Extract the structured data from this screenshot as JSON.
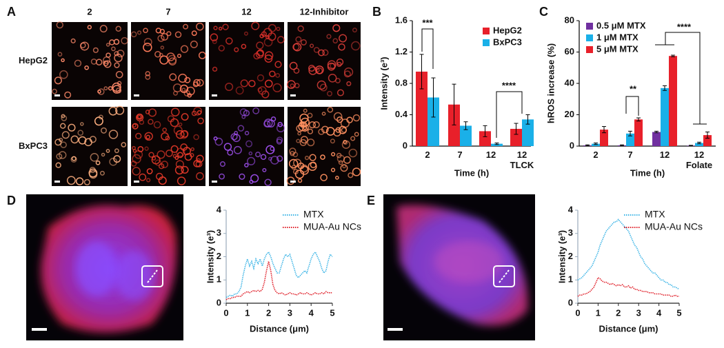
{
  "panel_labels": [
    "A",
    "B",
    "C",
    "D",
    "E"
  ],
  "figure_a": {
    "columns": [
      "2",
      "7",
      "12",
      "12-Inhibitor"
    ],
    "rows": [
      "HepG2",
      "BxPC3"
    ]
  },
  "chart_data": [
    {
      "type": "bar",
      "categories": [
        "2",
        "7",
        "12",
        "12\nTLCK"
      ],
      "xlabel": "Time (h)",
      "ylabel": "Intensity (e³)",
      "ylim": [
        0,
        1.6
      ],
      "yticks": [
        0,
        0.4,
        0.8,
        1.2,
        1.6
      ],
      "legend": "upper right",
      "series": [
        {
          "name": "HepG2",
          "color": "#e8202a",
          "values": [
            0.95,
            0.53,
            0.19,
            0.22
          ],
          "errors": [
            0.22,
            0.26,
            0.07,
            0.07
          ]
        },
        {
          "name": "BxPC3",
          "color": "#1ab0e8",
          "values": [
            0.62,
            0.26,
            0.03,
            0.34
          ],
          "errors": [
            0.25,
            0.05,
            0.01,
            0.06
          ]
        }
      ],
      "annotations": [
        "***",
        "****"
      ]
    },
    {
      "type": "bar",
      "categories": [
        "2",
        "7",
        "12",
        "12\nFolate"
      ],
      "xlabel": "Time (h)",
      "ylabel": "hROS increase (%)",
      "ylim": [
        0,
        80
      ],
      "yticks": [
        0,
        20,
        40,
        60,
        80
      ],
      "legend": "upper left",
      "series": [
        {
          "name": "0.5 μM MTX",
          "color": "#7030a0",
          "values": [
            0.5,
            0.5,
            9,
            0.3
          ],
          "errors": [
            0.3,
            0.3,
            0.5,
            0.2
          ]
        },
        {
          "name": "1 μM MTX",
          "color": "#1ab0e8",
          "values": [
            1.5,
            8,
            37,
            2
          ],
          "errors": [
            0.5,
            1.5,
            1.5,
            0.5
          ]
        },
        {
          "name": "5 μM MTX",
          "color": "#e8202a",
          "values": [
            10.5,
            17,
            57.5,
            7
          ],
          "errors": [
            2,
            1,
            0.5,
            2
          ]
        }
      ],
      "annotations": [
        "**",
        "****"
      ]
    },
    {
      "type": "line",
      "xlabel": "Distance (μm)",
      "ylabel": "Intensity (e³)",
      "xlim": [
        0,
        5
      ],
      "xticks": [
        0,
        1,
        2,
        3,
        4,
        5
      ],
      "ylim": [
        0,
        4
      ],
      "yticks": [
        0,
        1,
        2,
        3,
        4
      ],
      "legend": "upper right",
      "x": [
        0,
        0.1,
        0.2,
        0.3,
        0.4,
        0.5,
        0.6,
        0.7,
        0.8,
        0.9,
        1,
        1.1,
        1.2,
        1.3,
        1.4,
        1.5,
        1.6,
        1.7,
        1.8,
        1.9,
        2,
        2.1,
        2.2,
        2.3,
        2.4,
        2.5,
        2.6,
        2.7,
        2.8,
        2.9,
        3,
        3.1,
        3.2,
        3.3,
        3.4,
        3.5,
        3.6,
        3.7,
        3.8,
        3.9,
        4,
        4.1,
        4.2,
        4.3,
        4.4,
        4.5,
        4.6,
        4.7,
        4.8,
        4.9,
        5
      ],
      "series": [
        {
          "name": "MTX",
          "color": "#3bb4e6",
          "values": [
            0.25,
            0.3,
            0.35,
            0.3,
            0.4,
            0.4,
            0.5,
            0.7,
            1.2,
            1.6,
            1.9,
            1.6,
            1.8,
            1.5,
            1.9,
            1.7,
            1.9,
            1.6,
            1.9,
            2.1,
            2.2,
            2.0,
            1.7,
            1.5,
            1.3,
            1.3,
            1.6,
            1.9,
            2.1,
            2.0,
            2.1,
            1.8,
            1.5,
            1.2,
            1.1,
            1.2,
            1.3,
            1.4,
            1.3,
            1.6,
            1.9,
            2.1,
            2.2,
            2.0,
            1.8,
            1.5,
            1.3,
            1.4,
            1.8,
            2.1,
            2.0
          ]
        },
        {
          "name": "MUA-Au NCs",
          "color": "#e0202a",
          "values": [
            0.15,
            0.2,
            0.2,
            0.25,
            0.25,
            0.3,
            0.3,
            0.3,
            0.4,
            0.45,
            0.5,
            0.45,
            0.5,
            0.55,
            0.5,
            0.55,
            0.5,
            0.6,
            0.9,
            1.4,
            1.8,
            1.4,
            0.8,
            0.55,
            0.45,
            0.4,
            0.45,
            0.4,
            0.35,
            0.4,
            0.45,
            0.4,
            0.4,
            0.35,
            0.4,
            0.45,
            0.4,
            0.4,
            0.45,
            0.4,
            0.35,
            0.4,
            0.45,
            0.4,
            0.4,
            0.45,
            0.4,
            0.5,
            0.45,
            0.45,
            0.45
          ]
        }
      ]
    },
    {
      "type": "line",
      "xlabel": "Distance (μm)",
      "ylabel": "Intensity (e³)",
      "xlim": [
        0,
        5
      ],
      "xticks": [
        0,
        1,
        2,
        3,
        4,
        5
      ],
      "ylim": [
        0,
        4
      ],
      "yticks": [
        0,
        1,
        2,
        3,
        4
      ],
      "legend": "upper right",
      "x": [
        0,
        0.1,
        0.2,
        0.3,
        0.4,
        0.5,
        0.6,
        0.7,
        0.8,
        0.9,
        1,
        1.1,
        1.2,
        1.3,
        1.4,
        1.5,
        1.6,
        1.7,
        1.8,
        1.9,
        2,
        2.1,
        2.2,
        2.3,
        2.4,
        2.5,
        2.6,
        2.7,
        2.8,
        2.9,
        3,
        3.1,
        3.2,
        3.3,
        3.4,
        3.5,
        3.6,
        3.7,
        3.8,
        3.9,
        4,
        4.1,
        4.2,
        4.3,
        4.4,
        4.5,
        4.6,
        4.7,
        4.8,
        4.9,
        5
      ],
      "series": [
        {
          "name": "MTX",
          "color": "#3bb4e6",
          "values": [
            1.0,
            1.05,
            1.1,
            1.2,
            1.3,
            1.4,
            1.5,
            1.6,
            1.8,
            2.0,
            2.2,
            2.5,
            2.7,
            2.9,
            3.1,
            3.2,
            3.3,
            3.4,
            3.5,
            3.5,
            3.6,
            3.5,
            3.4,
            3.3,
            3.2,
            3.1,
            2.9,
            2.7,
            2.5,
            2.4,
            2.2,
            2.0,
            1.9,
            1.7,
            1.6,
            1.5,
            1.4,
            1.3,
            1.3,
            1.2,
            1.1,
            1.0,
            1.0,
            0.9,
            0.9,
            0.8,
            0.8,
            0.7,
            0.7,
            0.65,
            0.6
          ]
        },
        {
          "name": "MUA-Au NCs",
          "color": "#e0202a",
          "values": [
            0.3,
            0.35,
            0.35,
            0.4,
            0.4,
            0.45,
            0.5,
            0.6,
            0.7,
            0.9,
            1.1,
            1.05,
            0.95,
            0.9,
            0.9,
            0.85,
            0.8,
            0.85,
            0.8,
            0.75,
            0.8,
            0.75,
            0.8,
            0.7,
            0.7,
            0.75,
            0.65,
            0.7,
            0.6,
            0.6,
            0.55,
            0.55,
            0.5,
            0.5,
            0.5,
            0.45,
            0.45,
            0.45,
            0.4,
            0.4,
            0.4,
            0.4,
            0.35,
            0.35,
            0.35,
            0.35,
            0.3,
            0.3,
            0.35,
            0.3,
            0.3
          ]
        }
      ]
    }
  ]
}
